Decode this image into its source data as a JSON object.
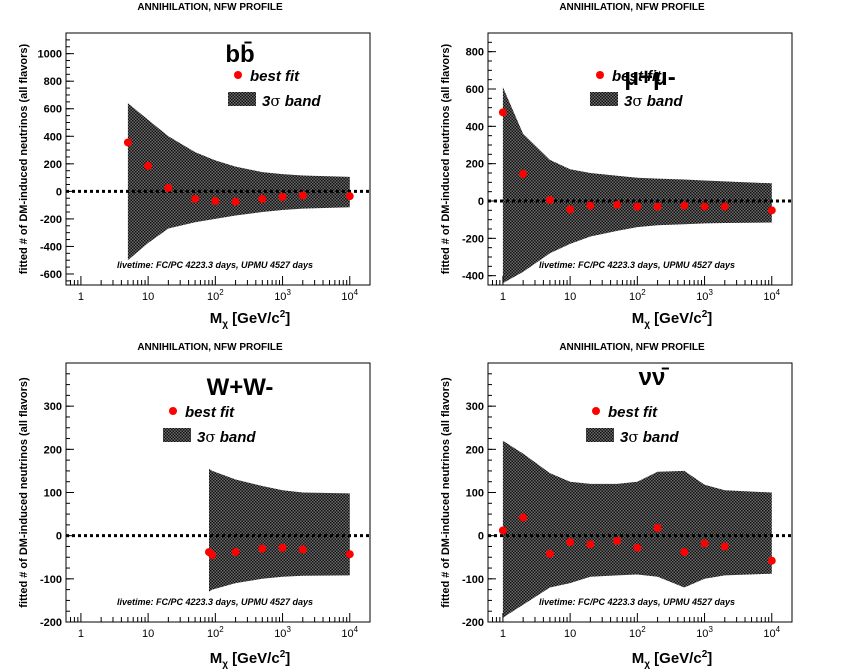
{
  "figure_title": "ANNIHILATION, NFW PROFILE",
  "y_axis_label": "fitted # of DM-induced neutrinos (all flavors)",
  "x_axis_label_prefix": "M",
  "x_axis_label_sub": "χ",
  "x_axis_label_suffix": " [GeV/c",
  "x_axis_label_sup": "2",
  "x_axis_label_close": "]",
  "legend": {
    "best_fit": "best fit",
    "band_prefix": "3",
    "band_sigma": "σ",
    "band_suffix": " band"
  },
  "livetime": "livetime: FC/PC 4223.3 days, UPMU 4527  days",
  "x_ticks": [
    {
      "value": 1,
      "base": "1",
      "exp": ""
    },
    {
      "value": 10,
      "base": "10",
      "exp": ""
    },
    {
      "value": 100,
      "base": "10",
      "exp": "2"
    },
    {
      "value": 1000,
      "base": "10",
      "exp": "3"
    },
    {
      "value": 10000,
      "base": "10",
      "exp": "4"
    }
  ],
  "colors": {
    "point": "#ff0000",
    "band": "#111111",
    "zero_line": "#000000"
  },
  "chart_data": [
    {
      "type": "scatter",
      "channel": "bb̄",
      "title": "ANNIHILATION, NFW PROFILE",
      "xlabel": "Mχ [GeV/c2]",
      "ylabel": "fitted # of DM-induced neutrinos (all flavors)",
      "xscale": "log",
      "xlim": [
        0.6,
        20000
      ],
      "ylim": [
        -680,
        1150
      ],
      "yticks": [
        -600,
        -400,
        -200,
        0,
        200,
        400,
        600,
        800,
        1000
      ],
      "series": [
        {
          "name": "best fit",
          "x": [
            5,
            10,
            20,
            50,
            100,
            200,
            500,
            1000,
            2000,
            10000
          ],
          "y": [
            355,
            185,
            25,
            -55,
            -70,
            -75,
            -55,
            -40,
            -30,
            -35
          ]
        },
        {
          "name": "3σ band upper",
          "x": [
            5,
            10,
            20,
            50,
            100,
            200,
            500,
            1000,
            2000,
            10000
          ],
          "y": [
            640,
            520,
            400,
            285,
            225,
            180,
            140,
            125,
            115,
            105
          ]
        },
        {
          "name": "3σ band lower",
          "x": [
            5,
            10,
            20,
            50,
            100,
            200,
            500,
            1000,
            2000,
            10000
          ],
          "y": [
            -500,
            -375,
            -270,
            -225,
            -200,
            -175,
            -150,
            -135,
            -125,
            -115
          ]
        }
      ]
    },
    {
      "type": "scatter",
      "channel": "μ+μ-",
      "title": "ANNIHILATION, NFW PROFILE",
      "xlabel": "Mχ [GeV/c2]",
      "ylabel": "fitted # of DM-induced neutrinos (all flavors)",
      "xscale": "log",
      "xlim": [
        0.6,
        20000
      ],
      "ylim": [
        -450,
        900
      ],
      "yticks": [
        -400,
        -200,
        0,
        200,
        400,
        600,
        800
      ],
      "series": [
        {
          "name": "best fit",
          "x": [
            1,
            2,
            5,
            10,
            20,
            50,
            100,
            200,
            500,
            1000,
            2000,
            10000
          ],
          "y": [
            475,
            145,
            5,
            -45,
            -25,
            -20,
            -30,
            -30,
            -25,
            -30,
            -30,
            -50
          ]
        },
        {
          "name": "3σ band upper",
          "x": [
            1,
            2,
            5,
            10,
            20,
            50,
            100,
            200,
            500,
            1000,
            2000,
            10000
          ],
          "y": [
            610,
            360,
            220,
            170,
            150,
            135,
            125,
            120,
            115,
            110,
            105,
            95
          ]
        },
        {
          "name": "3σ band lower",
          "x": [
            1,
            2,
            5,
            10,
            20,
            50,
            100,
            200,
            500,
            1000,
            2000,
            10000
          ],
          "y": [
            -440,
            -380,
            -280,
            -230,
            -190,
            -160,
            -140,
            -130,
            -125,
            -120,
            -118,
            -115
          ]
        }
      ]
    },
    {
      "type": "scatter",
      "channel": "W+W-",
      "title": "ANNIHILATION, NFW PROFILE",
      "xlabel": "Mχ [GeV/c2]",
      "ylabel": "fitted # of DM-induced neutrinos (all flavors)",
      "xscale": "log",
      "xlim": [
        0.6,
        20000
      ],
      "ylim": [
        -200,
        400
      ],
      "yticks": [
        -200,
        -100,
        0,
        100,
        200,
        300
      ],
      "series": [
        {
          "name": "best fit",
          "x": [
            80.4,
            90,
            200,
            500,
            1000,
            2000,
            10000
          ],
          "y": [
            -38,
            -45,
            -38,
            -30,
            -28,
            -32,
            -43
          ]
        },
        {
          "name": "3σ band upper",
          "x": [
            80.4,
            90,
            200,
            500,
            1000,
            2000,
            10000
          ],
          "y": [
            155,
            150,
            130,
            115,
            105,
            100,
            98
          ]
        },
        {
          "name": "3σ band lower",
          "x": [
            80.4,
            90,
            200,
            500,
            1000,
            2000,
            10000
          ],
          "y": [
            -130,
            -125,
            -110,
            -100,
            -95,
            -93,
            -92
          ]
        }
      ]
    },
    {
      "type": "scatter",
      "channel": "νν̄",
      "title": "ANNIHILATION, NFW PROFILE",
      "xlabel": "Mχ [GeV/c2]",
      "ylabel": "fitted # of DM-induced neutrinos (all flavors)",
      "xscale": "log",
      "xlim": [
        0.6,
        20000
      ],
      "ylim": [
        -200,
        400
      ],
      "yticks": [
        -200,
        -100,
        0,
        100,
        200,
        300
      ],
      "series": [
        {
          "name": "best fit",
          "x": [
            1,
            2,
            5,
            10,
            20,
            50,
            100,
            200,
            500,
            1000,
            2000,
            10000
          ],
          "y": [
            12,
            42,
            -42,
            -15,
            -20,
            -12,
            -28,
            18,
            -38,
            -18,
            -25,
            -58
          ]
        },
        {
          "name": "3σ band upper",
          "x": [
            1,
            2,
            5,
            10,
            20,
            50,
            100,
            200,
            500,
            1000,
            2000,
            10000
          ],
          "y": [
            220,
            190,
            145,
            125,
            120,
            120,
            125,
            148,
            150,
            118,
            105,
            100
          ]
        },
        {
          "name": "3σ band lower",
          "x": [
            1,
            2,
            5,
            10,
            20,
            50,
            100,
            200,
            500,
            1000,
            2000,
            10000
          ],
          "y": [
            -190,
            -160,
            -120,
            -110,
            -95,
            -92,
            -90,
            -95,
            -120,
            -100,
            -92,
            -88
          ]
        }
      ]
    }
  ]
}
